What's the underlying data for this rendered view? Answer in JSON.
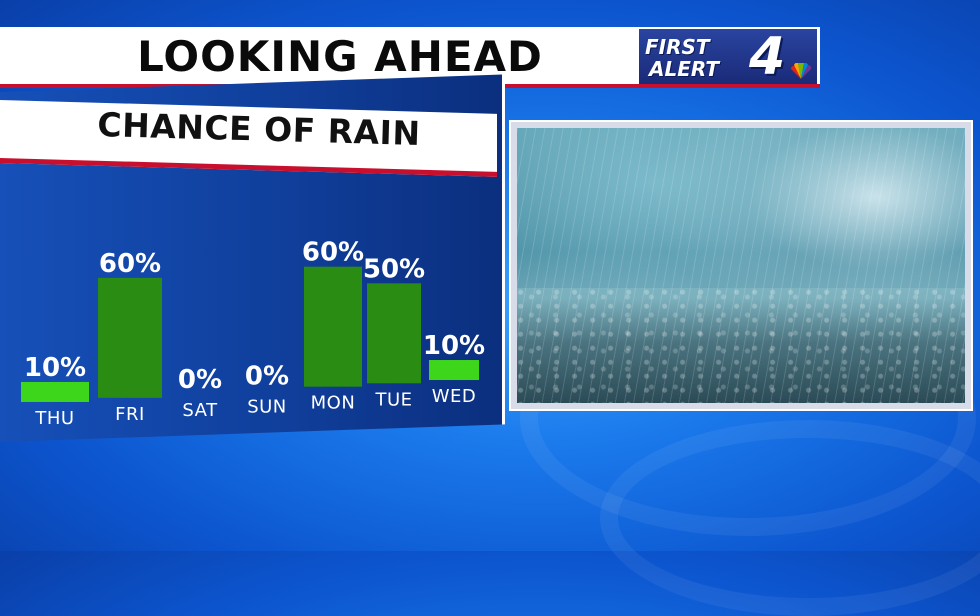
{
  "header": {
    "title": "LOOKING AHEAD"
  },
  "logo": {
    "line1": "FIRST",
    "line2": "ALERT",
    "number": "4"
  },
  "chart_data": {
    "type": "bar",
    "title": "CHANCE OF RAIN",
    "categories": [
      "THU",
      "FRI",
      "SAT",
      "SUN",
      "MON",
      "TUE",
      "WED"
    ],
    "values": [
      10,
      60,
      0,
      0,
      60,
      50,
      10
    ],
    "value_labels": [
      "10%",
      "60%",
      "0%",
      "0%",
      "60%",
      "50%",
      "10%"
    ],
    "ylim": [
      0,
      100
    ],
    "colors": {
      "bar": "#2a8c12",
      "bar_light": "#3ed61b",
      "label": "#ffffff"
    }
  },
  "colors": {
    "accent": "#c8102e",
    "panel": "#103f9c"
  }
}
